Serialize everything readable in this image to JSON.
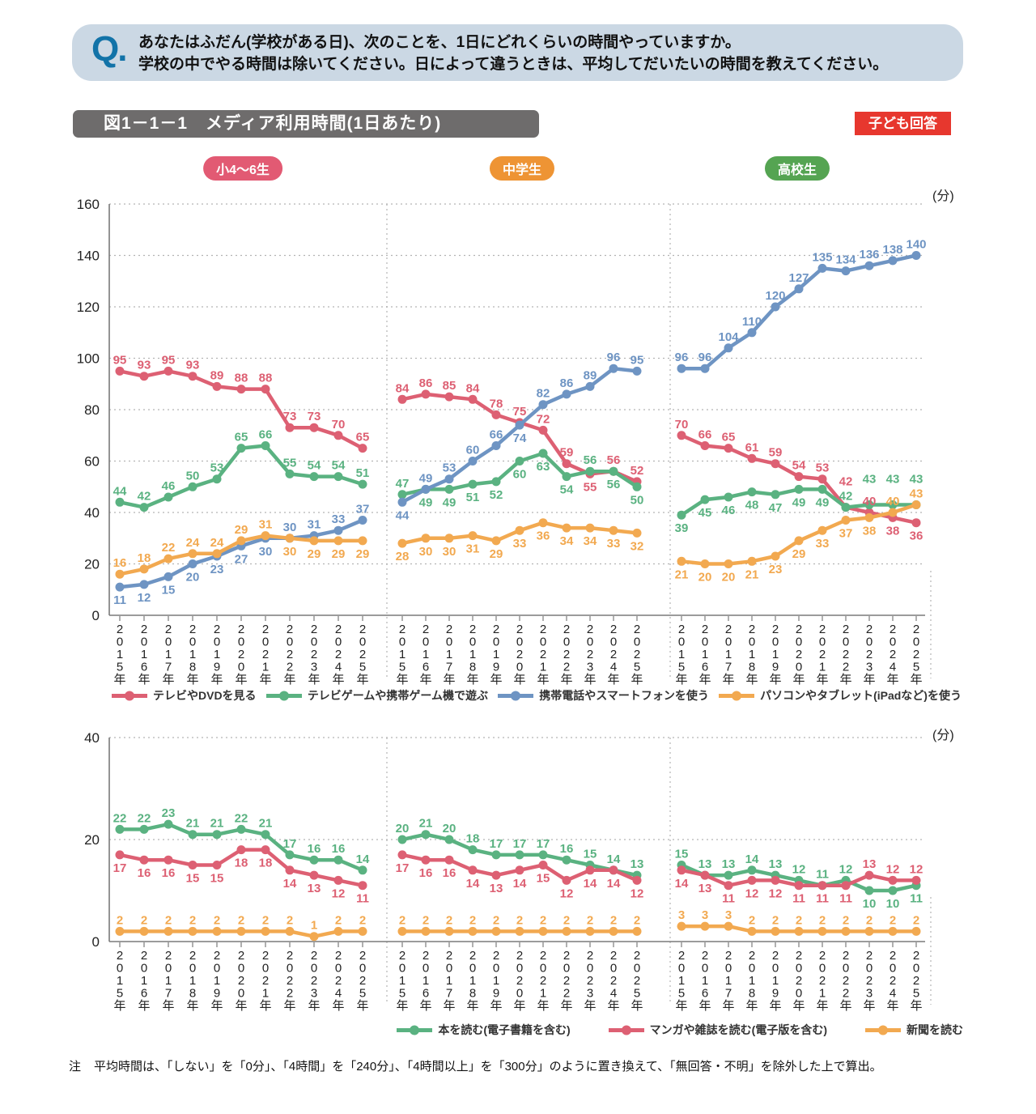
{
  "question": {
    "q_label": "Q.",
    "line1": "あなたはふだん(学校がある日)、次のことを、1日にどれくらいの時間やっていますか。",
    "line2": "学校の中でやる時間は除いてください。日によって違うときは、平均してだいたいの時間を教えてください。"
  },
  "title": "図1－1－1　メディア利用時間(1日あたり)",
  "respondent_badge": "子ども回答",
  "note_label": "注",
  "note_body": "平均時間は、「しない」を「0分」、「4時間」を「240分」、「4時間以上」を「300分」のように置き換えて、「無回答・不明」を除外した上で算出。",
  "groups": [
    {
      "label": "小4〜6生",
      "color": "#e25a73"
    },
    {
      "label": "中学生",
      "color": "#ee9434"
    },
    {
      "label": "高校生",
      "color": "#55a452"
    }
  ],
  "chart_data": [
    {
      "type": "line",
      "title": "メディア利用時間(1日あたり) 上段",
      "unit": "(分)",
      "ylim": [
        0,
        160
      ],
      "ytick_step": 20,
      "grid": true,
      "legend_position": "below",
      "group_labels": [
        "小4〜6生",
        "中学生",
        "高校生"
      ],
      "categories": [
        "2015年",
        "2016年",
        "2017年",
        "2018年",
        "2019年",
        "2020年",
        "2021年",
        "2022年",
        "2023年",
        "2024年",
        "2025年"
      ],
      "series": [
        {
          "name": "テレビやDVDを見る",
          "color": "#dd6073",
          "values": [
            [
              95,
              93,
              95,
              93,
              89,
              88,
              88,
              73,
              73,
              70,
              65
            ],
            [
              84,
              86,
              85,
              84,
              78,
              75,
              72,
              59,
              55,
              56,
              52
            ],
            [
              70,
              66,
              65,
              61,
              59,
              54,
              53,
              42,
              40,
              38,
              36
            ]
          ],
          "label_pos": [
            "aaaaaaaaaaa",
            "aaaaaaaabaa",
            "aaaaaaaAabb"
          ]
        },
        {
          "name": "テレビゲームや携帯ゲーム機で遊ぶ",
          "color": "#5ab281",
          "values": [
            [
              44,
              42,
              46,
              50,
              53,
              65,
              66,
              55,
              54,
              54,
              51
            ],
            [
              47,
              49,
              49,
              51,
              52,
              60,
              63,
              54,
              56,
              56,
              50
            ],
            [
              39,
              45,
              46,
              48,
              47,
              49,
              49,
              42,
              43,
              43,
              43
            ]
          ],
          "label_pos": [
            "aaaaaaaaaaa",
            "abbbbbbbabb",
            "bbbbbbbaAAA"
          ]
        },
        {
          "name": "携帯電話やスマートフォンを使う",
          "color": "#6e94c3",
          "values": [
            [
              11,
              12,
              15,
              20,
              23,
              27,
              30,
              30,
              31,
              33,
              37
            ],
            [
              44,
              49,
              53,
              60,
              66,
              74,
              82,
              86,
              89,
              96,
              95
            ],
            [
              96,
              96,
              104,
              110,
              120,
              127,
              135,
              134,
              136,
              138,
              140
            ]
          ],
          "label_pos": [
            "bbbbbbbaaaa",
            "baaaabaaaaa",
            "aaaaaaaaaaa"
          ]
        },
        {
          "name": "パソコンやタブレット(iPadなど)を使う",
          "color": "#f2a950",
          "values": [
            [
              16,
              18,
              22,
              24,
              24,
              29,
              31,
              30,
              29,
              29,
              29
            ],
            [
              28,
              30,
              30,
              31,
              29,
              33,
              36,
              34,
              34,
              33,
              32
            ],
            [
              21,
              20,
              20,
              21,
              23,
              29,
              33,
              37,
              38,
              40,
              43
            ]
          ],
          "label_pos": [
            "aaaaaaabbbb",
            "bbbbbbbbbbb",
            "bbbbbbbbbaa"
          ]
        }
      ]
    },
    {
      "type": "line",
      "title": "メディア利用時間(1日あたり) 下段",
      "unit": "(分)",
      "ylim": [
        0,
        40
      ],
      "ytick_step": 20,
      "grid": true,
      "legend_position": "below-right",
      "group_labels": [
        "小4〜6生",
        "中学生",
        "高校生"
      ],
      "categories": [
        "2015年",
        "2016年",
        "2017年",
        "2018年",
        "2019年",
        "2020年",
        "2021年",
        "2022年",
        "2023年",
        "2024年",
        "2025年"
      ],
      "series": [
        {
          "name": "本を読む(電子書籍を含む)",
          "color": "#5ab281",
          "values": [
            [
              22,
              22,
              23,
              21,
              21,
              22,
              21,
              17,
              16,
              16,
              14
            ],
            [
              20,
              21,
              20,
              18,
              17,
              17,
              17,
              16,
              15,
              14,
              13
            ],
            [
              15,
              13,
              13,
              14,
              13,
              12,
              11,
              12,
              10,
              10,
              11
            ]
          ],
          "label_pos": [
            "aaaaaaaaaaa",
            "aaaaaaaaaaa",
            "aaaaaaaabbb"
          ]
        },
        {
          "name": "マンガや雑誌を読む(電子版を含む)",
          "color": "#dd6073",
          "values": [
            [
              17,
              16,
              16,
              15,
              15,
              18,
              18,
              14,
              13,
              12,
              11
            ],
            [
              17,
              16,
              16,
              14,
              13,
              14,
              15,
              12,
              14,
              14,
              12
            ],
            [
              14,
              13,
              11,
              12,
              12,
              11,
              11,
              11,
              13,
              12,
              12
            ]
          ],
          "label_pos": [
            "bbbbbbbbbbb",
            "bbbbbbbbbbb",
            "bbbbbbbbaaa"
          ]
        },
        {
          "name": "新聞を読む",
          "color": "#f2a950",
          "values": [
            [
              2,
              2,
              2,
              2,
              2,
              2,
              2,
              2,
              1,
              2,
              2
            ],
            [
              2,
              2,
              2,
              2,
              2,
              2,
              2,
              2,
              2,
              2,
              2
            ],
            [
              3,
              3,
              3,
              2,
              2,
              2,
              2,
              2,
              2,
              2,
              2
            ]
          ],
          "label_pos": [
            "aaaaaaaaaaa",
            "aaaaaaaaaaa",
            "aaaaaaaaaaa"
          ]
        }
      ]
    }
  ]
}
